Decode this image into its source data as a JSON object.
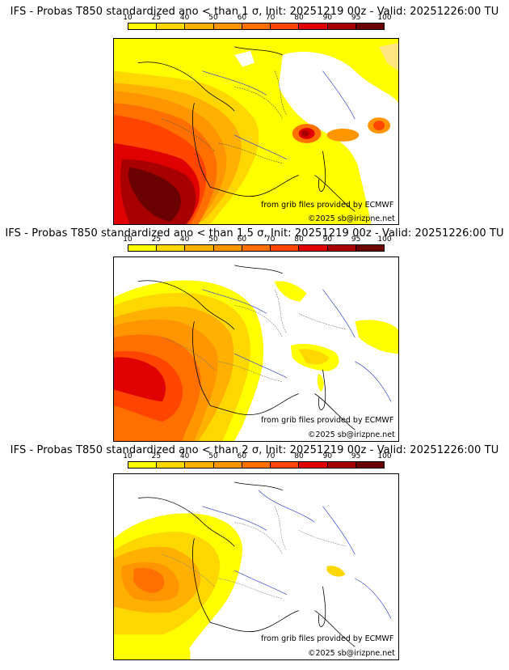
{
  "scale": {
    "labels": [
      "10",
      "25",
      "40",
      "50",
      "60",
      "70",
      "80",
      "90",
      "95",
      "100"
    ],
    "colors": [
      "#ffff00",
      "#ffd700",
      "#ffb000",
      "#ff9500",
      "#ff7000",
      "#ff4500",
      "#e00000",
      "#a80000",
      "#6a0000"
    ]
  },
  "panels": [
    {
      "title": "IFS - Probas T850  standardized ano < than 1 σ, Init: 20251219 00z - Valid: 20251226:00 TU",
      "credit_source": "from grib files provided by ECMWF",
      "credit_copyright": "©2025 sb@irizpne.net"
    },
    {
      "title": "IFS - Probas T850  standardized ano < than 1.5 σ, Init: 20251219 00z - Valid: 20251226:00 TU",
      "credit_source": "from grib files provided by ECMWF",
      "credit_copyright": "©2025 sb@irizpne.net"
    },
    {
      "title": "IFS - Probas T850  standardized ano < than 2 σ, Init: 20251219 00z - Valid: 20251226:00 TU",
      "credit_source": "from grib files provided by ECMWF",
      "credit_copyright": "©2025 sb@irizpne.net"
    }
  ]
}
